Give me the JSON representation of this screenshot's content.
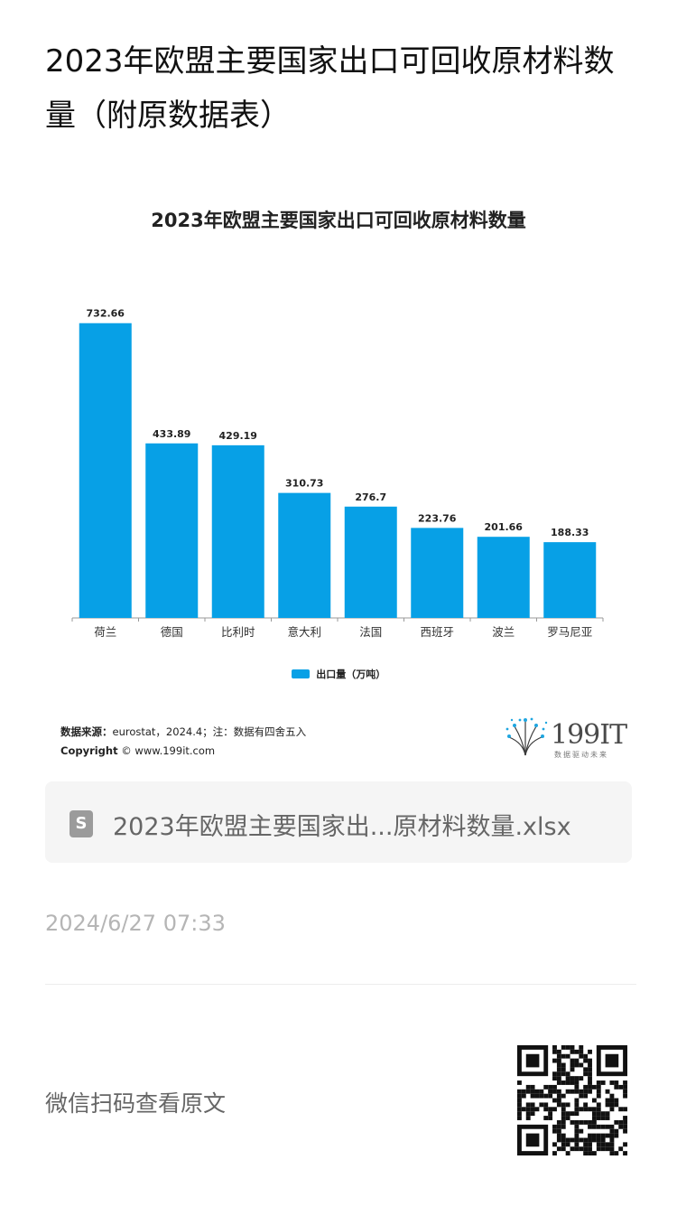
{
  "article": {
    "title": "2023年欧盟主要国家出口可回收原材料数量（附原数据表）"
  },
  "chart_data": {
    "type": "bar",
    "title": "2023年欧盟主要国家出口可回收原材料数量",
    "categories": [
      "荷兰",
      "德国",
      "比利时",
      "意大利",
      "法国",
      "西班牙",
      "波兰",
      "罗马尼亚"
    ],
    "series": [
      {
        "name": "出口量（万吨）",
        "values": [
          732.66,
          433.89,
          429.19,
          310.73,
          276.7,
          223.76,
          201.66,
          188.33
        ],
        "labels": [
          "732.66",
          "433.89",
          "429.19",
          "310.73",
          "276.7",
          "223.76",
          "201.66",
          "188.33"
        ]
      }
    ],
    "ylim": [
      0,
      750
    ],
    "grid": false,
    "legend_position": "bottom",
    "colors": {
      "bar": "#07a0e6",
      "axis": "#999999"
    }
  },
  "chart_footer": {
    "source_label": "数据来源：",
    "source_text": "eurostat，2024.4；注：数据有四舍五入",
    "copyright_label": "Copyright",
    "copyright_text": "© www.199it.com",
    "logo_text": "199IT",
    "logo_sub": "数据驱动未来"
  },
  "attachment": {
    "icon": "spreadsheet-file-icon",
    "icon_glyph": "S",
    "file_name": "2023年欧盟主要国家出...原材料数量.xlsx"
  },
  "meta": {
    "timestamp": "2024/6/27 07:33",
    "scan_prompt": "微信扫码查看原文"
  }
}
